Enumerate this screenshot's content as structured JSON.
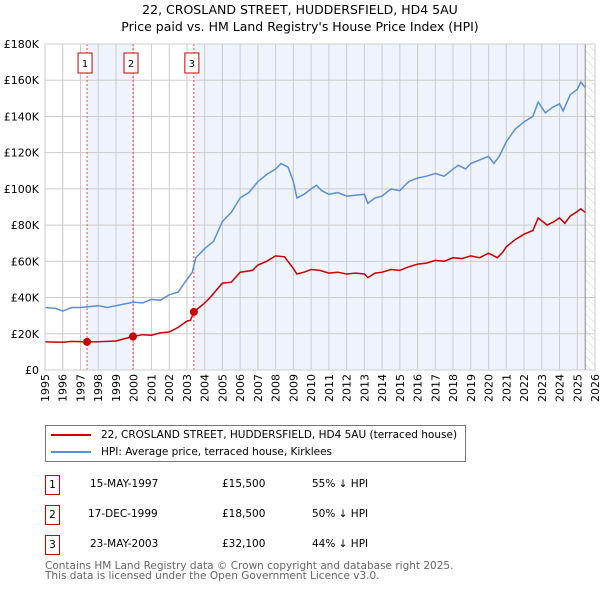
{
  "title": "22, CROSLAND STREET, HUDDERSFIELD, HD4 5AU",
  "subtitle": "Price paid vs. HM Land Registry's House Price Index (HPI)",
  "colors": {
    "property": "#cc0000",
    "hpi": "#5b8fd4",
    "shade": "#eef3fc",
    "grid": "#cccccc",
    "marker": "#cc0000"
  },
  "chart_data": {
    "type": "line",
    "title": "22, CROSLAND STREET, HUDDERSFIELD, HD4 5AU",
    "xlim": [
      1995,
      2026
    ],
    "ylim": [
      0,
      180000
    ],
    "grid": true,
    "x_ticks": [
      "1995",
      "1996",
      "1997",
      "1998",
      "1999",
      "2000",
      "2001",
      "2002",
      "2003",
      "2004",
      "2005",
      "2006",
      "2007",
      "2008",
      "2009",
      "2010",
      "2011",
      "2012",
      "2013",
      "2014",
      "2015",
      "2016",
      "2017",
      "2018",
      "2019",
      "2020",
      "2021",
      "2022",
      "2023",
      "2024",
      "2025",
      "2026"
    ],
    "y_ticks": [
      {
        "v": 0,
        "label": "£0"
      },
      {
        "v": 20000,
        "label": "£20K"
      },
      {
        "v": 40000,
        "label": "£40K"
      },
      {
        "v": 60000,
        "label": "£60K"
      },
      {
        "v": 80000,
        "label": "£80K"
      },
      {
        "v": 100000,
        "label": "£100K"
      },
      {
        "v": 120000,
        "label": "£120K"
      },
      {
        "v": 140000,
        "label": "£140K"
      },
      {
        "v": 160000,
        "label": "£160K"
      },
      {
        "v": 180000,
        "label": "£180K"
      }
    ],
    "series": [
      {
        "name": "22, CROSLAND STREET, HUDDERSFIELD, HD4 5AU (terraced house)",
        "color": "#cc0000",
        "x": [
          1995,
          1996,
          1996.5,
          1997.37,
          1998,
          1999,
          1999.96,
          2000.5,
          2001,
          2001.5,
          2002,
          2002.5,
          2003,
          2003.2,
          2003.39,
          2004,
          2004.3,
          2005,
          2005.5,
          2006,
          2006.7,
          2007,
          2007.5,
          2008,
          2008.5,
          2009,
          2009.2,
          2009.6,
          2010,
          2010.5,
          2011,
          2011.5,
          2012,
          2012.5,
          2013,
          2013.2,
          2013.6,
          2014,
          2014.5,
          2015,
          2015.5,
          2016,
          2016.5,
          2017,
          2017.5,
          2018,
          2018.5,
          2019,
          2019.5,
          2020,
          2020.5,
          2020.8,
          2021,
          2021.5,
          2022,
          2022.5,
          2022.8,
          2023.3,
          2023.7,
          2024,
          2024.3,
          2024.6,
          2025,
          2025.2,
          2025.45
        ],
        "y": [
          15500,
          15300,
          15800,
          15500,
          15600,
          16000,
          18500,
          19500,
          19200,
          20500,
          21000,
          23500,
          27000,
          27500,
          32100,
          37000,
          40000,
          48000,
          48500,
          54000,
          55000,
          58000,
          60000,
          63000,
          62500,
          56000,
          53000,
          54000,
          55500,
          55000,
          53500,
          54000,
          53000,
          53500,
          53000,
          51000,
          53500,
          54000,
          55500,
          55000,
          57000,
          58500,
          59000,
          60500,
          60000,
          62000,
          61500,
          63000,
          62000,
          64500,
          62000,
          65000,
          68000,
          72000,
          75000,
          77000,
          84000,
          80000,
          82000,
          84000,
          81000,
          85000,
          87500,
          89000,
          87000
        ]
      },
      {
        "name": "HPI: Average price, terraced house, Kirklees",
        "color": "#5b8fd4",
        "x": [
          1995,
          1995.6,
          1996,
          1996.5,
          1997,
          1997.5,
          1998,
          1998.5,
          1999,
          1999.5,
          2000,
          2000.5,
          2001,
          2001.5,
          2002,
          2002.5,
          2003,
          2003.3,
          2003.5,
          2004,
          2004.5,
          2005,
          2005.5,
          2006,
          2006.5,
          2007,
          2007.5,
          2008,
          2008.3,
          2008.7,
          2009,
          2009.2,
          2009.6,
          2010,
          2010.3,
          2010.6,
          2011,
          2011.5,
          2012,
          2012.5,
          2013,
          2013.2,
          2013.6,
          2014,
          2014.5,
          2015,
          2015.5,
          2016,
          2016.5,
          2017,
          2017.5,
          2018,
          2018.3,
          2018.7,
          2019,
          2019.5,
          2020,
          2020.3,
          2020.6,
          2021,
          2021.5,
          2022,
          2022.5,
          2022.8,
          2023.2,
          2023.6,
          2024,
          2024.2,
          2024.6,
          2025,
          2025.2,
          2025.45
        ],
        "y": [
          34500,
          34000,
          32500,
          34500,
          34500,
          35000,
          35500,
          34500,
          35500,
          36500,
          37500,
          37000,
          39000,
          38500,
          41500,
          43000,
          50000,
          54000,
          62000,
          67000,
          71000,
          82000,
          87000,
          95000,
          98000,
          104000,
          108000,
          111000,
          114000,
          112000,
          104000,
          95000,
          97000,
          100000,
          102000,
          99000,
          97000,
          98000,
          96000,
          96500,
          97000,
          92000,
          95000,
          96000,
          100000,
          99000,
          104000,
          106000,
          107000,
          108500,
          107000,
          111000,
          113000,
          111000,
          114000,
          116000,
          118000,
          114000,
          118000,
          126000,
          133000,
          137000,
          140000,
          148000,
          142000,
          145000,
          147000,
          143000,
          152000,
          155000,
          159000,
          156000
        ]
      }
    ],
    "sales": [
      {
        "n": "1",
        "x": 1997.37,
        "price": 15500,
        "date": "15-MAY-1997",
        "price_label": "£15,500",
        "delta": "55% ↓ HPI"
      },
      {
        "n": "2",
        "x": 1999.96,
        "price": 18500,
        "date": "17-DEC-1999",
        "price_label": "£18,500",
        "delta": "50% ↓ HPI"
      },
      {
        "n": "3",
        "x": 2003.39,
        "price": 32100,
        "date": "23-MAY-2003",
        "price_label": "£32,100",
        "delta": "44% ↓ HPI"
      }
    ],
    "data_end": 2025.45
  },
  "legend": {
    "property": "22, CROSLAND STREET, HUDDERSFIELD, HD4 5AU (terraced house)",
    "hpi": "HPI: Average price, terraced house, Kirklees"
  },
  "footer": {
    "line1": "Contains HM Land Registry data © Crown copyright and database right 2025.",
    "line2": "This data is licensed under the Open Government Licence v3.0."
  }
}
